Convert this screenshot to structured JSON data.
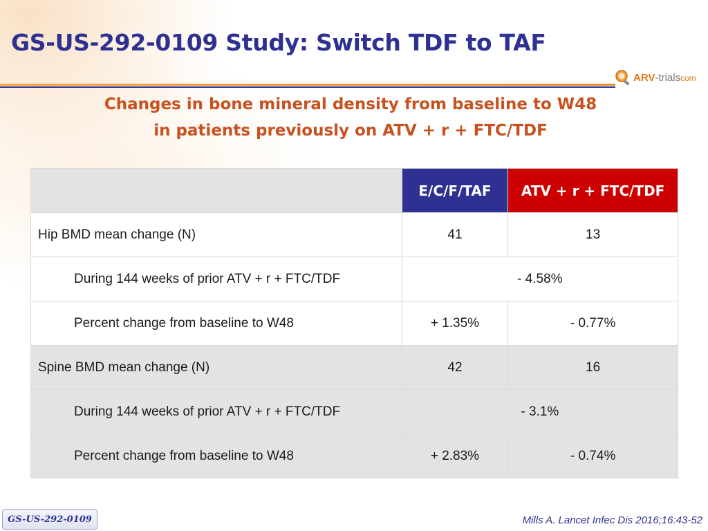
{
  "slide": {
    "title": "GS-US-292-0109 Study: Switch TDF to TAF",
    "subtitle_line1": "Changes in bone mineral density from baseline to W48",
    "subtitle_line2": "in patients previously on ATV + r + FTC/TDF",
    "colors": {
      "title": "#2e3192",
      "subtitle": "#c7511f",
      "header_ecftaf": "#2e3192",
      "header_atv": "#cc0000"
    }
  },
  "logo": {
    "part1": "ARV",
    "dash": "-",
    "part2": "trials",
    "part3": "com",
    "icon": "magnifier-logo-icon"
  },
  "table": {
    "headers": [
      "",
      "E/C/F/TAF",
      "ATV + r + FTC/TDF"
    ],
    "rows": [
      {
        "label": "Hip BMD mean change (N)",
        "a": "41",
        "b": "13"
      },
      {
        "label": "During 144 weeks of prior ATV + r + FTC/TDF",
        "merged": "- 4.58%"
      },
      {
        "label": "Percent change from baseline to W48",
        "a": "+ 1.35%",
        "b": "- 0.77%"
      },
      {
        "label": "Spine BMD mean change (N)",
        "a": "42",
        "b": "16"
      },
      {
        "label": "During 144 weeks of prior ATV + r + FTC/TDF",
        "merged": "- 3.1%"
      },
      {
        "label": "Percent change from baseline to W48",
        "a": "+ 2.83%",
        "b": "- 0.74%"
      }
    ]
  },
  "footer": {
    "study_tag": "GS-US-292-0109",
    "citation": "Mills A. Lancet Infec Dis 2016;16:43-52"
  }
}
